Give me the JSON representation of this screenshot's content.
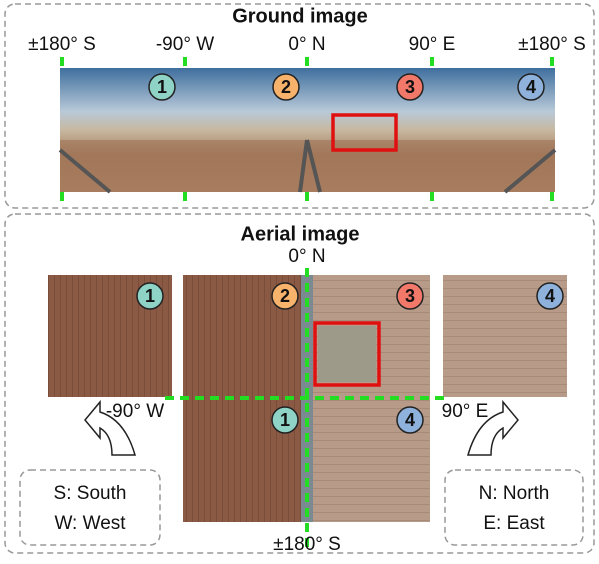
{
  "ground": {
    "title": "Ground image",
    "directions": [
      "±180°  S",
      "-90°  W",
      "0°  N",
      "90°  E",
      "±180°  S"
    ],
    "markers": [
      "1",
      "2",
      "3",
      "4"
    ]
  },
  "aerial": {
    "title": "Aerial image",
    "north": "0°  N",
    "west": "-90°  W",
    "east": "90°  E",
    "south": "±180°  S",
    "markers": [
      "1",
      "2",
      "3",
      "4",
      "1",
      "4"
    ]
  },
  "legend_left": [
    "S: South",
    "W: West"
  ],
  "legend_right": [
    "N: North",
    "E: East"
  ]
}
